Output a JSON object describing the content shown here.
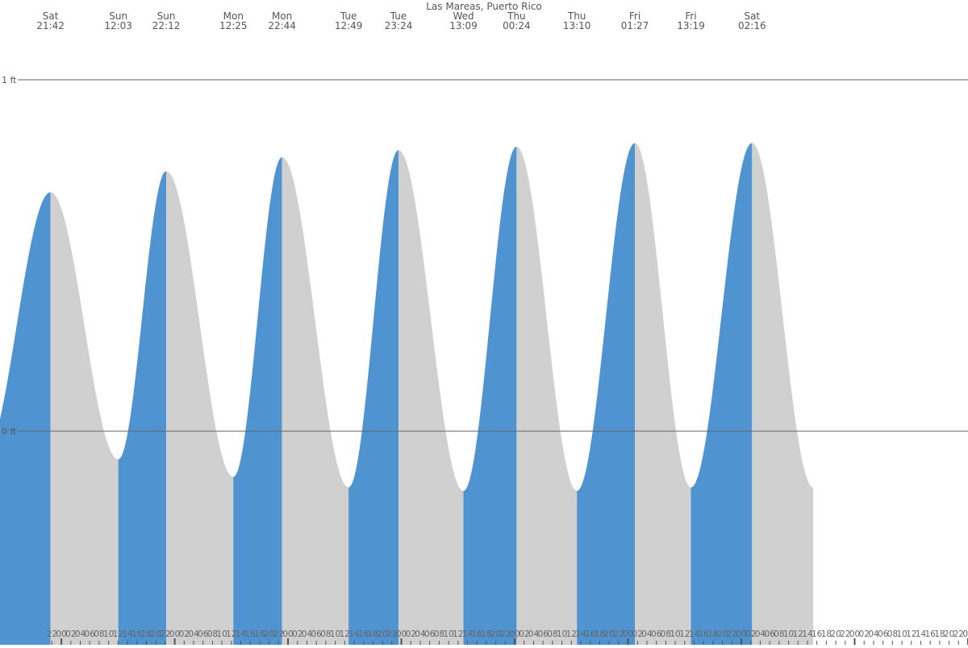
{
  "chart_data": {
    "type": "area",
    "title": "Las Mareas, Puerto Rico",
    "unit": "ft",
    "y_ticks": [
      {
        "value": 1,
        "label": "1 ft"
      },
      {
        "value": 0,
        "label": "0 ft"
      }
    ],
    "ylim": [
      -0.6,
      1.23
    ],
    "x_hours_range": [
      -13,
      192
    ],
    "colors": {
      "rising": "#4f93d0",
      "falling": "#d0d0d0",
      "level_line": "#666666",
      "tick": "#555555"
    },
    "extremes": [
      {
        "day": "Sat",
        "time": "21:42",
        "h": 0.68,
        "type": "high"
      },
      {
        "day": "Sun",
        "time": "12:03",
        "h": -0.08,
        "type": "low"
      },
      {
        "day": "Sun",
        "time": "22:12",
        "h": 0.74,
        "type": "high"
      },
      {
        "day": "Mon",
        "time": "12:25",
        "h": -0.13,
        "type": "low"
      },
      {
        "day": "Mon",
        "time": "22:44",
        "h": 0.78,
        "type": "high"
      },
      {
        "day": "Tue",
        "time": "12:49",
        "h": -0.16,
        "type": "low"
      },
      {
        "day": "Tue",
        "time": "23:24",
        "h": 0.8,
        "type": "high"
      },
      {
        "day": "Wed",
        "time": "13:09",
        "h": -0.17,
        "type": "low"
      },
      {
        "day": "Thu",
        "time": "00:24",
        "h": 0.81,
        "type": "high"
      },
      {
        "day": "Thu",
        "time": "13:10",
        "h": -0.17,
        "type": "low"
      },
      {
        "day": "Fri",
        "time": "01:27",
        "h": 0.82,
        "type": "high"
      },
      {
        "day": "Fri",
        "time": "13:19",
        "h": -0.16,
        "type": "low"
      },
      {
        "day": "Sat",
        "time": "02:16",
        "h": 0.82,
        "type": "high"
      }
    ],
    "extreme_hours": [
      -2.3,
      12.05,
      22.2,
      36.42,
      46.73,
      60.82,
      71.4,
      85.15,
      96.4,
      109.17,
      121.45,
      133.32,
      146.27
    ],
    "hour_labels": [
      "22",
      "00",
      "02",
      "04",
      "06",
      "08",
      "10",
      "12",
      "14",
      "16",
      "18",
      "20",
      "22",
      "00",
      "02",
      "04",
      "06",
      "08",
      "10",
      "12",
      "14",
      "16",
      "18",
      "20",
      "22",
      "00",
      "02",
      "04",
      "06",
      "08",
      "10",
      "12",
      "14",
      "16",
      "18",
      "20",
      "22",
      "00",
      "02",
      "04",
      "06",
      "08",
      "10",
      "12",
      "14",
      "16",
      "18",
      "20",
      "22",
      "00",
      "02",
      "04",
      "06",
      "08",
      "10",
      "12",
      "14",
      "16",
      "18",
      "20",
      "22",
      "00",
      "02",
      "04",
      "06",
      "08",
      "10",
      "12",
      "14",
      "16",
      "18",
      "20",
      "22",
      "00",
      "02",
      "04",
      "06",
      "08",
      "10",
      "12",
      "14",
      "16",
      "18",
      "20",
      "22",
      "00",
      "02",
      "04",
      "06",
      "08",
      "10",
      "12",
      "14",
      "16",
      "18",
      "20",
      "22",
      "00",
      "02",
      "04",
      "06",
      "0"
    ],
    "hour_label_start": -2
  }
}
